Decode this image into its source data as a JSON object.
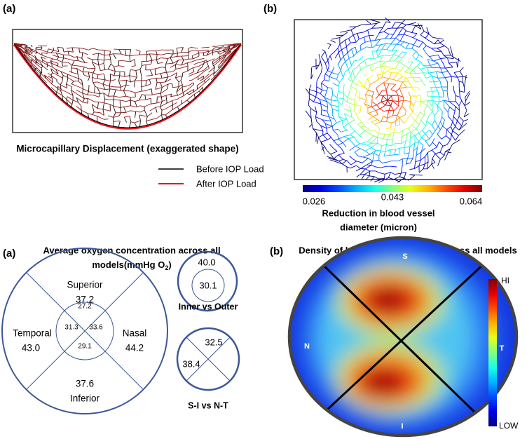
{
  "top_left": {
    "label": "(a)",
    "caption": "Microcapillary Displacement (exaggerated shape)",
    "legend": [
      {
        "name": "Before IOP Load",
        "color": "#000000"
      },
      {
        "name": "After IOP Load",
        "color": "#e8151b"
      }
    ]
  },
  "top_right": {
    "label": "(b)",
    "colorbar_ticks": [
      "0.026",
      "0.043",
      "0.064"
    ],
    "title_lines": [
      "Reduction in blood vessel",
      "diameter (micron)"
    ]
  },
  "bottom_left": {
    "label": "(a)",
    "title_line1": "Average oxygen concentration across all",
    "title_line2": {
      "text": "models(mmHg O",
      "sub": "2",
      "end": ")"
    },
    "quadrants": {
      "superior": {
        "name": "Superior",
        "outer": "37.2",
        "inner": "27.2"
      },
      "temporal": {
        "name": "Temporal",
        "outer": "43.0",
        "inner": "31.3"
      },
      "nasal": {
        "name": "Nasal",
        "outer": "44.2",
        "inner": "33.6"
      },
      "inferior": {
        "name": "Inferior",
        "outer": "37.6",
        "inner": "29.1"
      }
    },
    "inner_vs_outer": {
      "outer": "40.0",
      "inner": "30.1",
      "caption": "Inner vs Outer"
    },
    "si_vs_nt": {
      "si": "32.5",
      "nt": "38.4",
      "caption": "S-I vs N-T"
    }
  },
  "bottom_right": {
    "label": "(b)",
    "title": "Density of hypoxic tissue nodes across all models",
    "directions": {
      "top": "S",
      "left": "N",
      "right": "T",
      "bottom": "I"
    },
    "colorbar_high": "HI",
    "colorbar_low": "LOW"
  }
}
